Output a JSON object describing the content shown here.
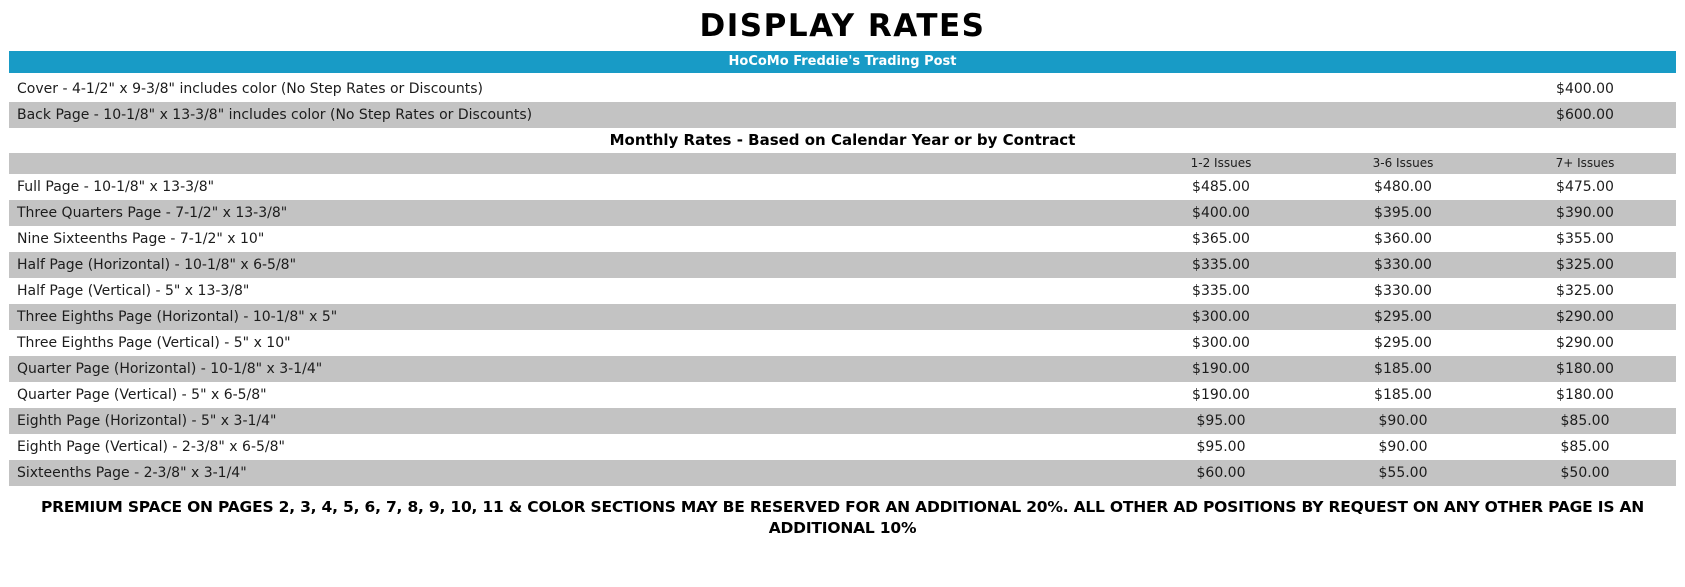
{
  "page": {
    "title": "DISPLAY RATES",
    "banner": "HoCoMo Freddie's Trading Post",
    "footnote": "PREMIUM SPACE ON PAGES 2, 3, 4, 5, 6, 7, 8, 9, 10, 11 & COLOR SECTIONS MAY BE RESERVED FOR AN ADDITIONAL 20%. ALL OTHER AD POSITIONS BY REQUEST ON ANY OTHER PAGE IS AN ADDITIONAL 10%"
  },
  "colors": {
    "banner_bg": "#189BC6",
    "banner_text": "#FFFFFF",
    "row_alt_bg": "#C3C3C3"
  },
  "special_rates": [
    {
      "label": "Cover - 4-1/2\" x 9-3/8\" includes color (No Step Rates or Discounts)",
      "price": "$400.00"
    },
    {
      "label": "Back Page - 10-1/8\" x 13-3/8\" includes color (No Step Rates or Discounts)",
      "price": "$600.00"
    }
  ],
  "monthly": {
    "heading": "Monthly Rates - Based on Calendar Year or by Contract",
    "columns": [
      "1-2 Issues",
      "3-6 Issues",
      "7+ Issues"
    ],
    "rows": [
      {
        "label": "Full Page - 10-1/8\" x 13-3/8\"",
        "rates": [
          "$485.00",
          "$480.00",
          "$475.00"
        ]
      },
      {
        "label": "Three Quarters Page - 7-1/2\" x 13-3/8\"",
        "rates": [
          "$400.00",
          "$395.00",
          "$390.00"
        ]
      },
      {
        "label": "Nine Sixteenths Page - 7-1/2\" x 10\"",
        "rates": [
          "$365.00",
          "$360.00",
          "$355.00"
        ]
      },
      {
        "label": "Half Page (Horizontal) - 10-1/8\" x 6-5/8\"",
        "rates": [
          "$335.00",
          "$330.00",
          "$325.00"
        ]
      },
      {
        "label": "Half Page (Vertical) - 5\" x 13-3/8\"",
        "rates": [
          "$335.00",
          "$330.00",
          "$325.00"
        ]
      },
      {
        "label": "Three Eighths Page (Horizontal) - 10-1/8\" x 5\"",
        "rates": [
          "$300.00",
          "$295.00",
          "$290.00"
        ]
      },
      {
        "label": "Three Eighths Page (Vertical) - 5\" x 10\"",
        "rates": [
          "$300.00",
          "$295.00",
          "$290.00"
        ]
      },
      {
        "label": "Quarter Page (Horizontal) - 10-1/8\" x 3-1/4\"",
        "rates": [
          "$190.00",
          "$185.00",
          "$180.00"
        ]
      },
      {
        "label": "Quarter Page (Vertical) - 5\" x 6-5/8\"",
        "rates": [
          "$190.00",
          "$185.00",
          "$180.00"
        ]
      },
      {
        "label": "Eighth Page (Horizontal) - 5\" x 3-1/4\"",
        "rates": [
          "$95.00",
          "$90.00",
          "$85.00"
        ]
      },
      {
        "label": "Eighth Page (Vertical) - 2-3/8\" x 6-5/8\"",
        "rates": [
          "$95.00",
          "$90.00",
          "$85.00"
        ]
      },
      {
        "label": "Sixteenths Page - 2-3/8\" x 3-1/4\"",
        "rates": [
          "$60.00",
          "$55.00",
          "$50.00"
        ]
      }
    ]
  }
}
